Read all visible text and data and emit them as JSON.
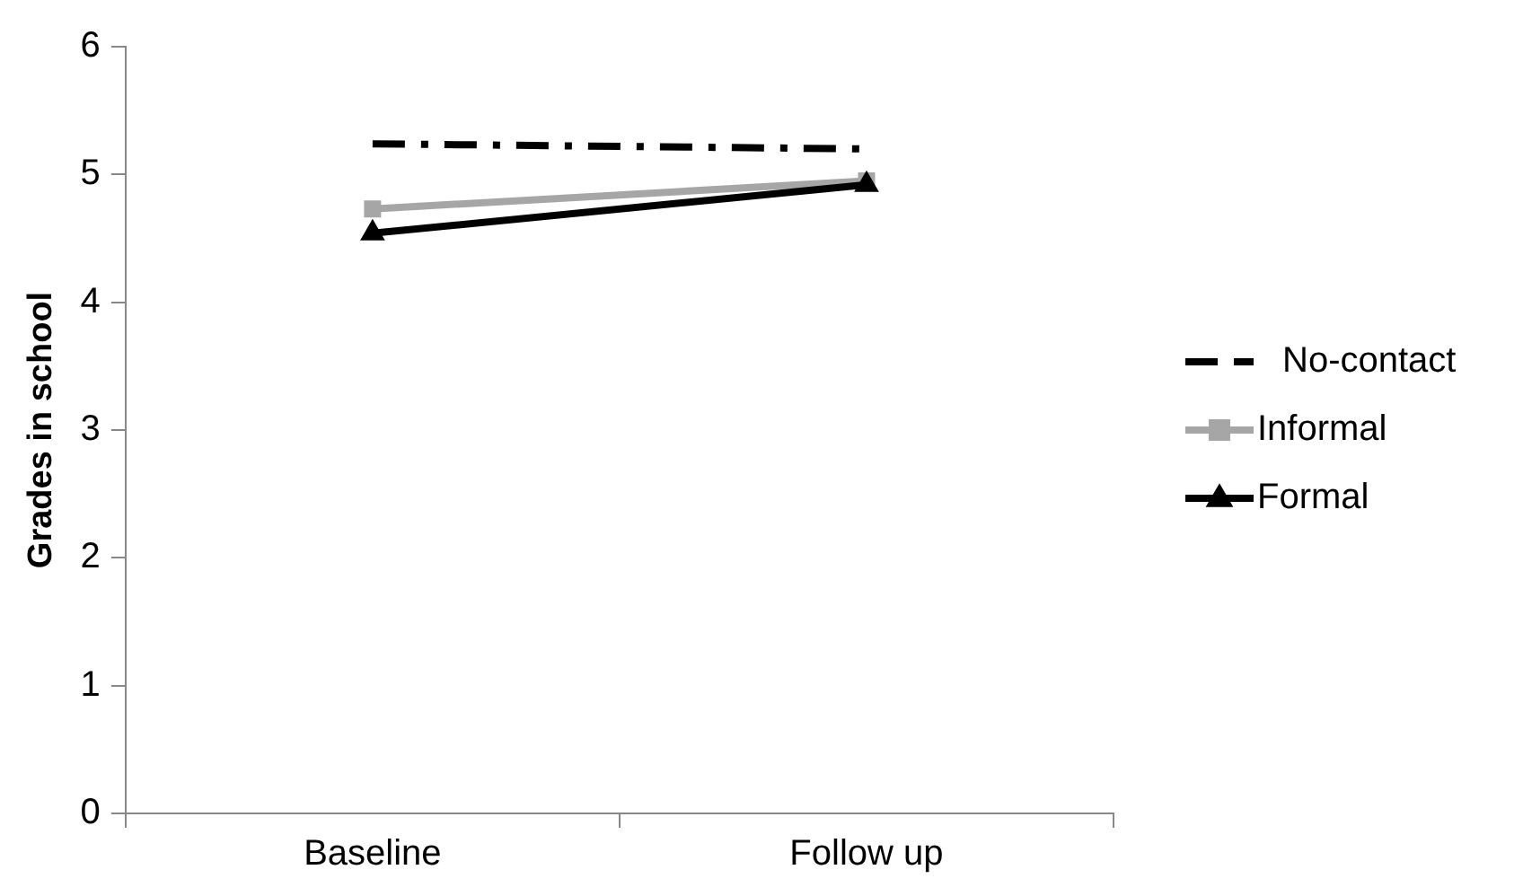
{
  "chart_data": {
    "type": "line",
    "ylabel": "Grades in school",
    "categories": [
      "Baseline",
      "Follow up"
    ],
    "series": [
      {
        "name": "No-contact",
        "color": "#000000",
        "values": [
          5.24,
          5.2
        ],
        "marker": "none",
        "line_style": "dashed"
      },
      {
        "name": "Informal",
        "color": "#a6a6a6",
        "values": [
          4.73,
          4.95
        ],
        "marker": "square",
        "line_style": "solid"
      },
      {
        "name": "Formal",
        "color": "#000000",
        "values": [
          4.54,
          4.92
        ],
        "marker": "triangle",
        "line_style": "solid"
      }
    ],
    "ylim": [
      0,
      6
    ],
    "yticks": [
      0,
      1,
      2,
      3,
      4,
      5,
      6
    ],
    "grid": false,
    "legend": "right"
  }
}
